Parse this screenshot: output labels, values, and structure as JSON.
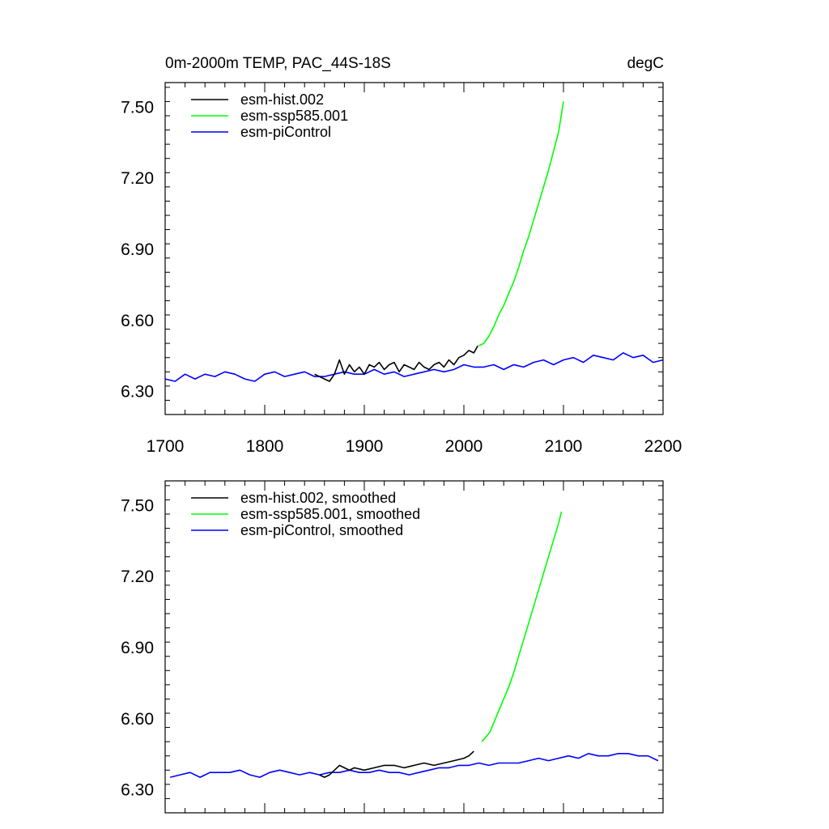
{
  "chart_data": [
    {
      "type": "line",
      "title": "0m-2000m TEMP, PAC_44S-18S",
      "units": "degC",
      "xlim": [
        1700,
        2200
      ],
      "ylim": [
        6.2,
        7.6
      ],
      "x_ticks": [
        1700,
        1800,
        1900,
        2000,
        2100,
        2200
      ],
      "x_tick_labels": [
        "1700",
        "1800",
        "1900",
        "2000",
        "2100",
        "2200"
      ],
      "y_ticks": [
        6.3,
        6.6,
        6.9,
        7.2,
        7.5
      ],
      "y_tick_labels": [
        "6.30",
        "6.60",
        "6.90",
        "7.20",
        "7.50"
      ],
      "legend_position": "top-left",
      "series": [
        {
          "name": "esm-hist.002",
          "color": "#000000",
          "x": [
            1850,
            1860,
            1865,
            1870,
            1875,
            1880,
            1885,
            1890,
            1895,
            1900,
            1905,
            1910,
            1915,
            1920,
            1925,
            1930,
            1935,
            1940,
            1945,
            1950,
            1955,
            1960,
            1965,
            1970,
            1975,
            1980,
            1985,
            1990,
            1995,
            2000,
            2005,
            2010,
            2014
          ],
          "y": [
            6.37,
            6.35,
            6.34,
            6.37,
            6.43,
            6.37,
            6.41,
            6.38,
            6.4,
            6.37,
            6.41,
            6.4,
            6.42,
            6.39,
            6.41,
            6.42,
            6.38,
            6.41,
            6.4,
            6.39,
            6.42,
            6.4,
            6.39,
            6.41,
            6.42,
            6.4,
            6.43,
            6.41,
            6.44,
            6.45,
            6.47,
            6.46,
            6.49
          ]
        },
        {
          "name": "esm-ssp585.001",
          "color": "#00ff00",
          "x": [
            2015,
            2020,
            2025,
            2030,
            2035,
            2040,
            2045,
            2050,
            2055,
            2060,
            2065,
            2070,
            2075,
            2080,
            2085,
            2090,
            2095,
            2100
          ],
          "y": [
            6.49,
            6.5,
            6.53,
            6.57,
            6.62,
            6.66,
            6.71,
            6.76,
            6.82,
            6.89,
            6.95,
            7.02,
            7.09,
            7.16,
            7.23,
            7.31,
            7.39,
            7.52
          ]
        },
        {
          "name": "esm-piControl",
          "color": "#0000ff",
          "x": [
            1700,
            1710,
            1720,
            1730,
            1740,
            1750,
            1760,
            1770,
            1780,
            1790,
            1800,
            1810,
            1820,
            1830,
            1840,
            1850,
            1860,
            1870,
            1880,
            1890,
            1900,
            1910,
            1920,
            1930,
            1940,
            1950,
            1960,
            1970,
            1980,
            1990,
            2000,
            2010,
            2020,
            2030,
            2040,
            2050,
            2060,
            2070,
            2080,
            2090,
            2100,
            2110,
            2120,
            2130,
            2140,
            2150,
            2160,
            2170,
            2180,
            2190,
            2200
          ],
          "y": [
            6.35,
            6.34,
            6.37,
            6.35,
            6.37,
            6.36,
            6.38,
            6.37,
            6.35,
            6.34,
            6.37,
            6.38,
            6.36,
            6.37,
            6.38,
            6.36,
            6.36,
            6.37,
            6.38,
            6.37,
            6.37,
            6.39,
            6.37,
            6.38,
            6.36,
            6.37,
            6.38,
            6.39,
            6.38,
            6.39,
            6.41,
            6.4,
            6.4,
            6.41,
            6.39,
            6.41,
            6.4,
            6.42,
            6.43,
            6.41,
            6.43,
            6.44,
            6.42,
            6.45,
            6.44,
            6.43,
            6.46,
            6.44,
            6.45,
            6.42,
            6.43
          ]
        }
      ]
    },
    {
      "type": "line",
      "title": "",
      "xlim": [
        1700,
        2200
      ],
      "ylim": [
        6.2,
        7.6
      ],
      "y_ticks": [
        6.3,
        6.6,
        6.9,
        7.2,
        7.5
      ],
      "y_tick_labels": [
        "6.30",
        "6.60",
        "6.90",
        "7.20",
        "7.50"
      ],
      "legend_position": "top-left",
      "series": [
        {
          "name": "esm-hist.002, smoothed",
          "color": "#000000",
          "x": [
            1855,
            1860,
            1865,
            1870,
            1875,
            1880,
            1885,
            1890,
            1900,
            1910,
            1920,
            1930,
            1940,
            1950,
            1960,
            1970,
            1980,
            1990,
            2000,
            2005,
            2010
          ],
          "y": [
            6.36,
            6.35,
            6.36,
            6.38,
            6.4,
            6.39,
            6.38,
            6.39,
            6.38,
            6.39,
            6.4,
            6.4,
            6.39,
            6.4,
            6.41,
            6.4,
            6.41,
            6.42,
            6.43,
            6.44,
            6.46
          ]
        },
        {
          "name": "esm-ssp585.001, smoothed",
          "color": "#00ff00",
          "x": [
            2018,
            2022,
            2026,
            2030,
            2035,
            2040,
            2045,
            2050,
            2055,
            2060,
            2065,
            2070,
            2075,
            2080,
            2085,
            2090,
            2095,
            2098
          ],
          "y": [
            6.5,
            6.52,
            6.54,
            6.58,
            6.63,
            6.68,
            6.73,
            6.79,
            6.86,
            6.93,
            7.0,
            7.07,
            7.14,
            7.21,
            7.28,
            7.35,
            7.42,
            7.47
          ]
        },
        {
          "name": "esm-piControl, smoothed",
          "color": "#0000ff",
          "x": [
            1705,
            1715,
            1725,
            1735,
            1745,
            1755,
            1765,
            1775,
            1785,
            1795,
            1805,
            1815,
            1825,
            1835,
            1845,
            1855,
            1865,
            1875,
            1885,
            1895,
            1905,
            1915,
            1925,
            1935,
            1945,
            1955,
            1965,
            1975,
            1985,
            1995,
            2005,
            2015,
            2025,
            2035,
            2045,
            2055,
            2065,
            2075,
            2085,
            2095,
            2105,
            2115,
            2125,
            2135,
            2145,
            2155,
            2165,
            2175,
            2185,
            2195
          ],
          "y": [
            6.35,
            6.36,
            6.37,
            6.35,
            6.37,
            6.37,
            6.37,
            6.38,
            6.36,
            6.35,
            6.37,
            6.38,
            6.37,
            6.36,
            6.37,
            6.36,
            6.37,
            6.37,
            6.38,
            6.37,
            6.37,
            6.38,
            6.37,
            6.37,
            6.36,
            6.37,
            6.38,
            6.39,
            6.39,
            6.4,
            6.4,
            6.41,
            6.4,
            6.41,
            6.41,
            6.41,
            6.42,
            6.43,
            6.42,
            6.43,
            6.44,
            6.43,
            6.45,
            6.44,
            6.44,
            6.45,
            6.45,
            6.44,
            6.44,
            6.42
          ]
        }
      ]
    }
  ]
}
